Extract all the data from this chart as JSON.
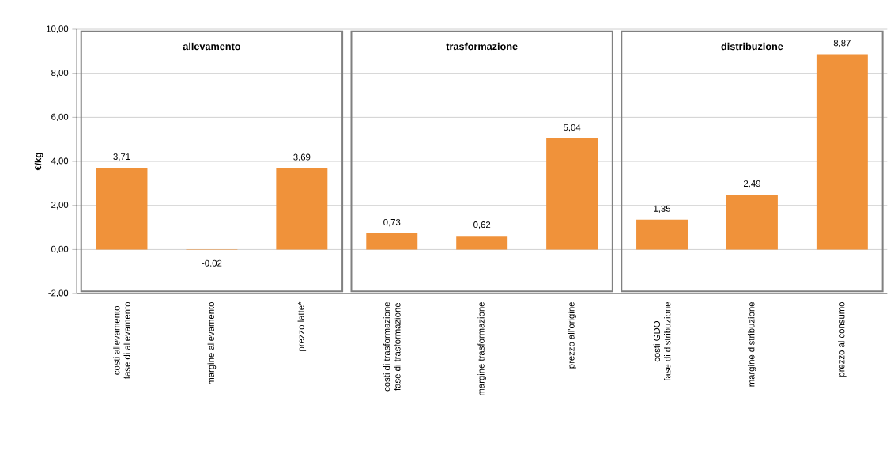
{
  "chart_data": {
    "type": "bar",
    "ylabel": "€/kg",
    "categories": [
      "costi  allevamento\nfase di allevamento",
      "margine allevamento",
      "prezzo latte*",
      "costi di trasformazione\nfase di trasformazione",
      "margine trasformazione",
      "prezzo all'origine",
      "costi GDO\nfase di distribuzione",
      "margine distribuzione",
      "prezzo al consumo"
    ],
    "values": [
      3.71,
      -0.02,
      3.69,
      0.73,
      0.62,
      5.04,
      1.35,
      2.49,
      8.87
    ],
    "value_labels": [
      "3,71",
      "-0,02",
      "3,69",
      "0,73",
      "0,62",
      "5,04",
      "1,35",
      "2,49",
      "8,87"
    ],
    "color": "#f0923a",
    "ylim": [
      -2,
      10
    ],
    "yticks": [
      {
        "value": -2,
        "label": "-2,00"
      },
      {
        "value": 0,
        "label": "0,00"
      },
      {
        "value": 2,
        "label": "2,00"
      },
      {
        "value": 4,
        "label": "4,00"
      },
      {
        "value": 6,
        "label": "6,00"
      },
      {
        "value": 8,
        "label": "8,00"
      },
      {
        "value": 10,
        "label": "10,00"
      }
    ],
    "grid": "y",
    "annotations": [
      "allevamento",
      "trasformazione",
      "distribuzione"
    ]
  }
}
